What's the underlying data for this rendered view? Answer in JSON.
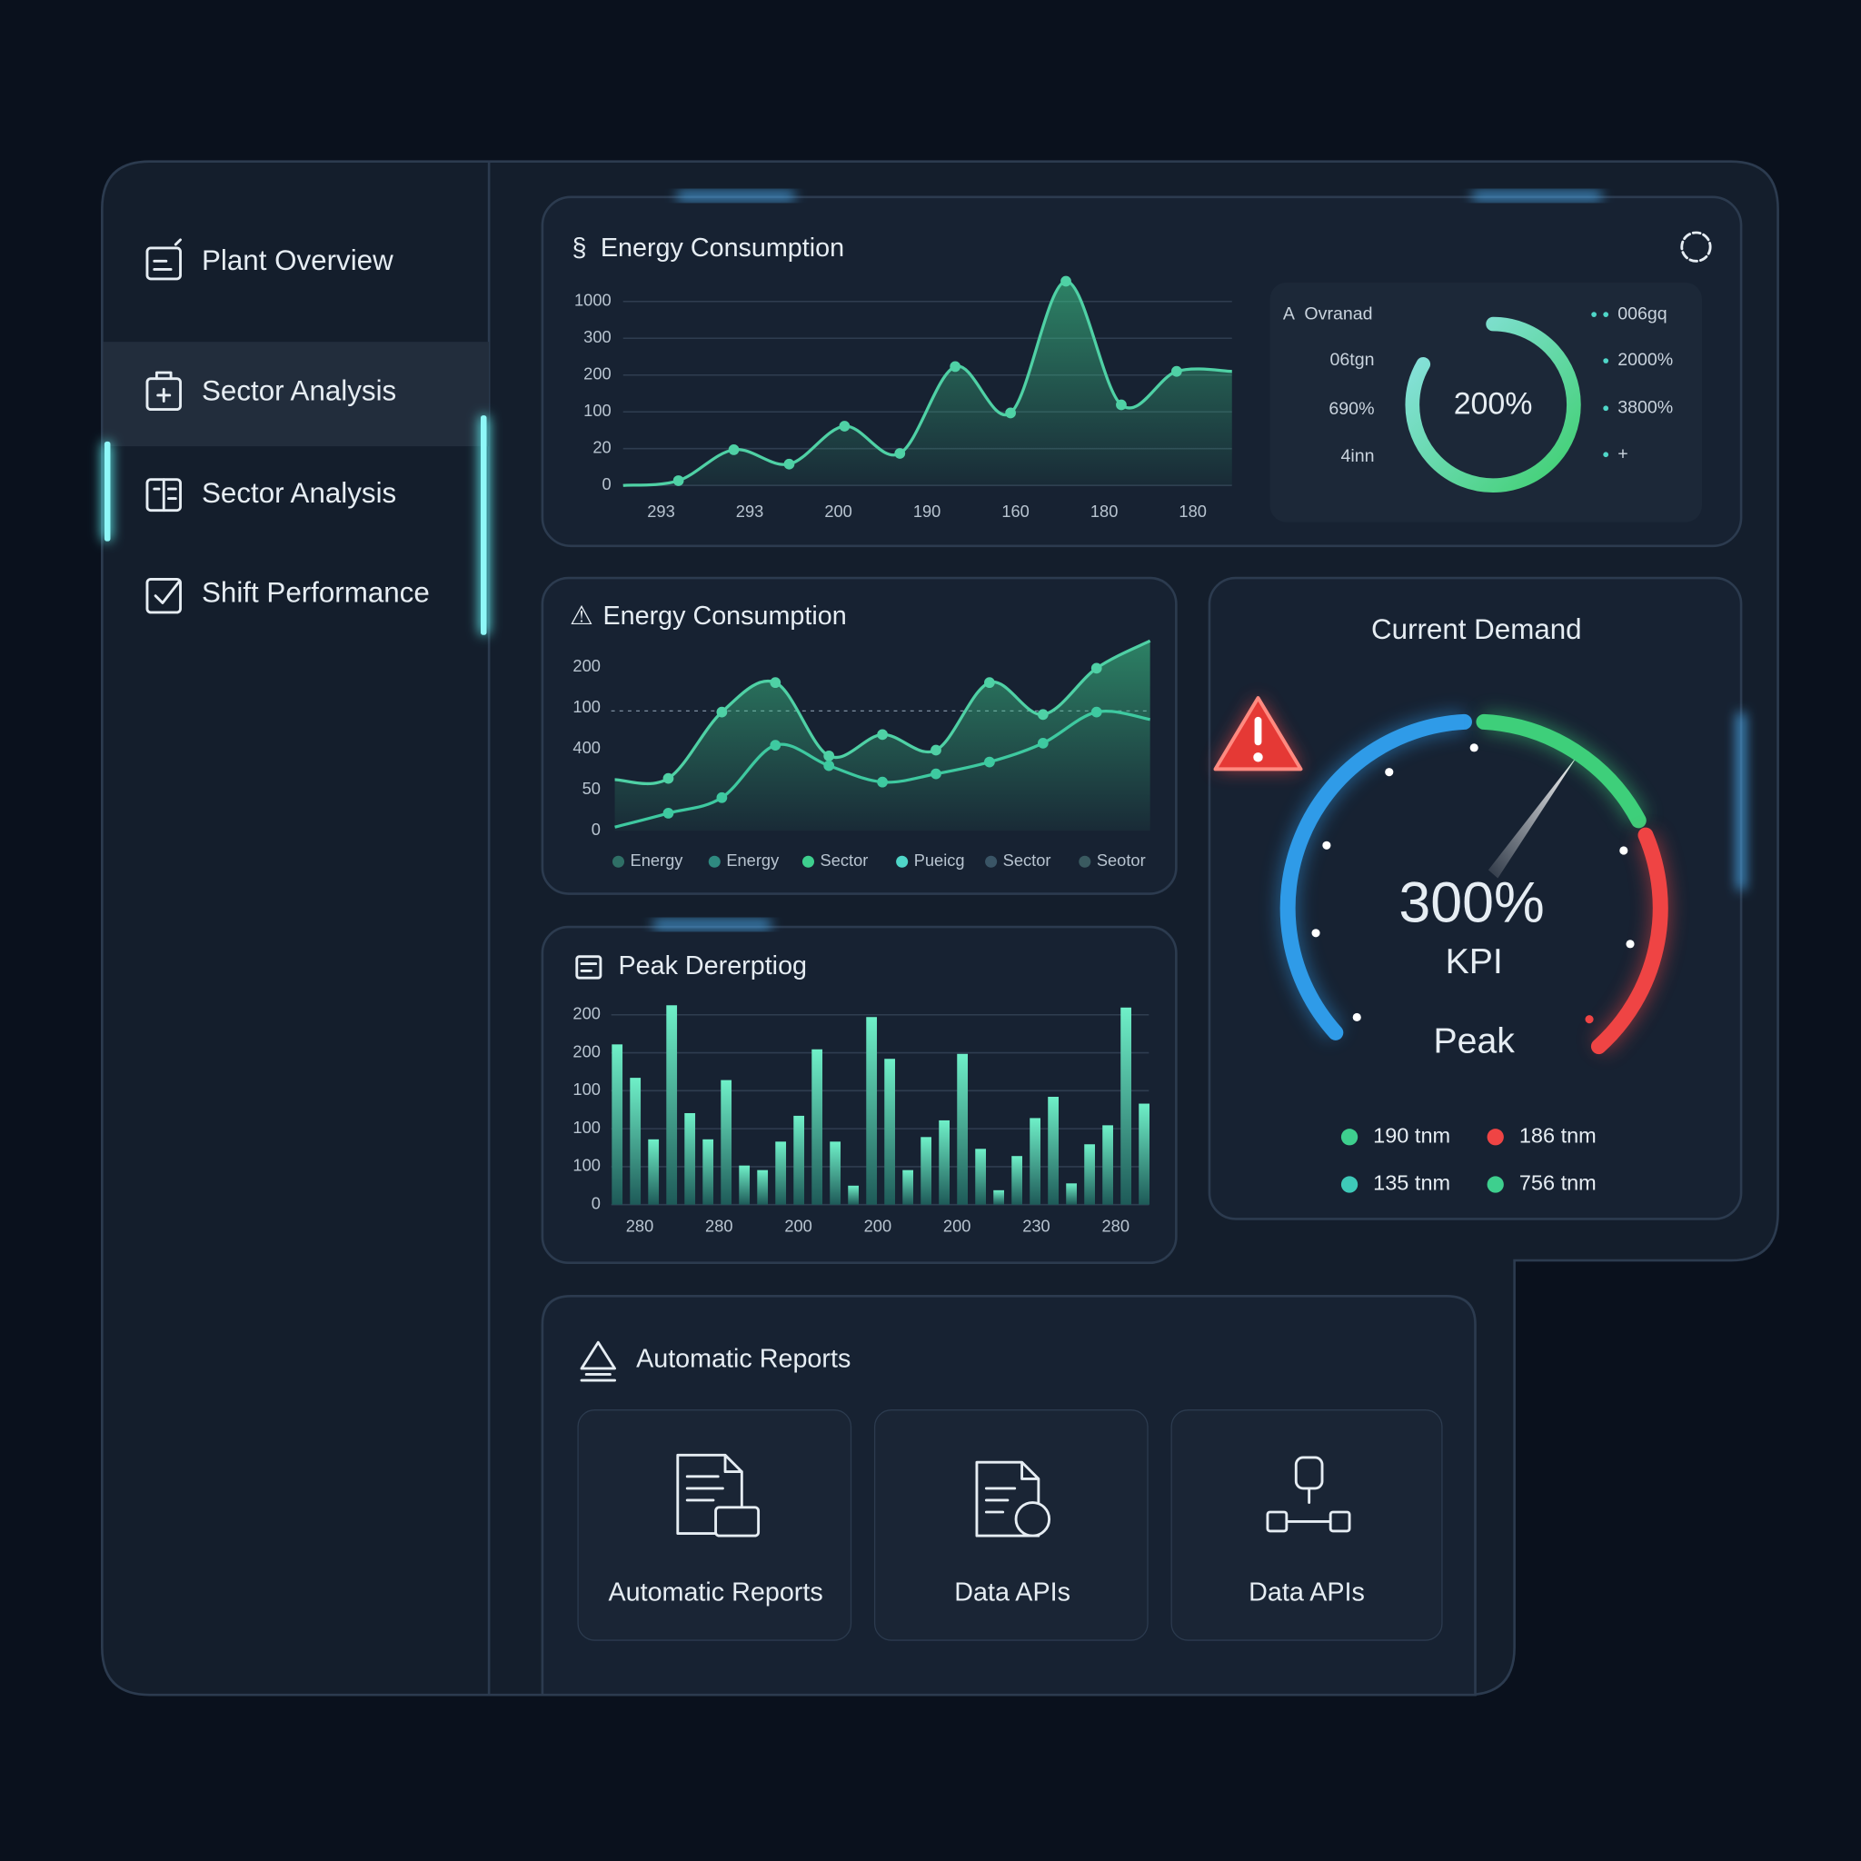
{
  "sidebar": {
    "items": [
      "Plant Overview",
      "Sector Analysis",
      "Sector Analysis",
      "Shift Performance"
    ]
  },
  "chart_data": [
    {
      "type": "line",
      "title": "Energy Consumption",
      "ylim": [
        0,
        5.6
      ],
      "yticks": [
        0,
        1,
        2,
        3,
        4,
        5
      ],
      "y_labels": [
        "0",
        "20",
        "100",
        "200",
        "300",
        "1000"
      ],
      "x_labels": [
        "293",
        "293",
        "200",
        "190",
        "160",
        "180",
        "180"
      ],
      "grid": true,
      "series": [
        {
          "color": "#4fd1a5",
          "area": true,
          "values": [
            0,
            0.13,
            0.97,
            0.58,
            1.61,
            0.87,
            3.23,
            1.97,
            5.55,
            2.19,
            3.1,
            3.1
          ]
        }
      ]
    },
    {
      "type": "line",
      "title": "Energy Consumption",
      "ylim": [
        0,
        4.8
      ],
      "yticks": [
        0,
        1,
        2,
        3,
        4
      ],
      "y_labels": [
        "0",
        "50",
        "400",
        "100",
        "200"
      ],
      "grid": false,
      "series": [
        {
          "color": "#4fd1a5",
          "area": true,
          "values": [
            1.25,
            1.28,
            2.9,
            3.62,
            1.83,
            2.35,
            1.97,
            3.62,
            2.84,
            3.97,
            4.64
          ]
        },
        {
          "color": "#3ec9a0",
          "area": false,
          "values": [
            0.09,
            0.43,
            0.81,
            2.09,
            1.59,
            1.19,
            1.39,
            1.68,
            2.14,
            2.9,
            2.72
          ]
        }
      ],
      "legend": [
        {
          "label": "Energy",
          "color": "#2f6f66"
        },
        {
          "label": "Energy",
          "color": "#2f8a80"
        },
        {
          "label": "Sector",
          "color": "#3ecf8e"
        },
        {
          "label": "Pueicg",
          "color": "#4fd6c8"
        },
        {
          "label": "Sector",
          "color": "#3a5566"
        },
        {
          "label": "Seotor",
          "color": "#3a5a60"
        }
      ]
    },
    {
      "type": "bar",
      "title": "Peak Dererptiog",
      "ylim": [
        0,
        5.3
      ],
      "yticks": [
        0,
        1,
        2,
        3,
        4,
        5
      ],
      "y_labels": [
        "0",
        "100",
        "100",
        "100",
        "200",
        "200"
      ],
      "x_labels": [
        "280",
        "280",
        "200",
        "200",
        "200",
        "230",
        "280"
      ],
      "grid": true,
      "color": "#5ee6c0",
      "values": [
        4.22,
        3.34,
        1.72,
        5.25,
        2.41,
        1.72,
        3.28,
        1.03,
        0.91,
        1.66,
        2.34,
        4.09,
        1.66,
        0.5,
        4.94,
        3.84,
        0.91,
        1.78,
        2.22,
        3.97,
        1.47,
        0.38,
        1.28,
        2.28,
        2.84,
        0.56,
        1.59,
        2.09,
        5.19,
        2.66
      ]
    }
  ],
  "summary": {
    "title": "Ovranad",
    "left_labels": [
      "06tgn",
      "690%",
      "4inn"
    ],
    "center": "200%",
    "right_labels": [
      "006gq",
      "2000%",
      "3800%",
      "+"
    ]
  },
  "demand": {
    "title": "Current Demand",
    "value": "300%",
    "label": "KPI",
    "sublabel": "Peak",
    "legend": [
      {
        "label": "190 tnm",
        "color": "#3ecf8e"
      },
      {
        "label": "186 tnm",
        "color": "#ef4444"
      },
      {
        "label": "135 tnm",
        "color": "#3ec9b8"
      },
      {
        "label": "756 tnm",
        "color": "#3ecf8e"
      }
    ]
  },
  "reports": {
    "title": "Automatic Reports",
    "cards": [
      "Automatic Reports",
      "Data APIs",
      "Data APIs"
    ]
  }
}
